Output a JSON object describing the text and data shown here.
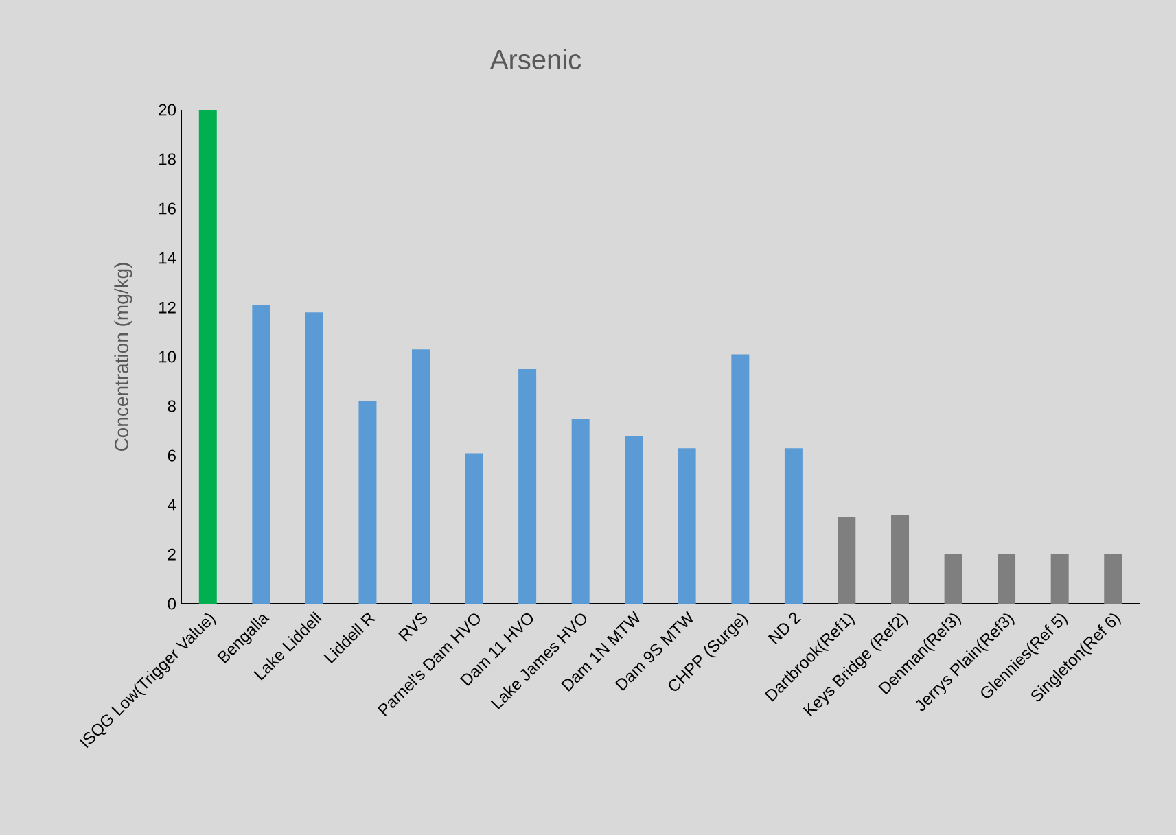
{
  "chart_data": {
    "type": "bar",
    "title": "Arsenic",
    "ylabel": "Concentration (mg/kg)",
    "categories": [
      "ISQG Low(Trigger Value)",
      "Bengalla",
      "Lake Liddell",
      "Liddell R",
      "RVS",
      "Parnel's Dam HVO",
      "Dam 11 HVO",
      "Lake James HVO",
      "Dam 1N MTW",
      "Dam 9S MTW",
      "CHPP (Surge)",
      "ND 2",
      "Dartbrook(Ref1)",
      "Keys Bridge (Ref2)",
      "Denman(Ref3)",
      "Jerrys Plain(Ref3)",
      "Glennies(Ref 5)",
      "Singleton(Ref 6)"
    ],
    "values": [
      20,
      12.1,
      11.8,
      8.2,
      10.3,
      6.1,
      9.5,
      7.5,
      6.8,
      6.3,
      10.1,
      6.3,
      3.5,
      3.6,
      2.0,
      2.0,
      2.0,
      2.0
    ],
    "colors": [
      "#00b050",
      "#5b9bd5",
      "#5b9bd5",
      "#5b9bd5",
      "#5b9bd5",
      "#5b9bd5",
      "#5b9bd5",
      "#5b9bd5",
      "#5b9bd5",
      "#5b9bd5",
      "#5b9bd5",
      "#5b9bd5",
      "#7f7f7f",
      "#7f7f7f",
      "#7f7f7f",
      "#7f7f7f",
      "#7f7f7f",
      "#7f7f7f"
    ],
    "ylim": [
      0,
      20
    ],
    "yticks": [
      0,
      2,
      4,
      6,
      8,
      10,
      12,
      14,
      16,
      18,
      20
    ]
  }
}
